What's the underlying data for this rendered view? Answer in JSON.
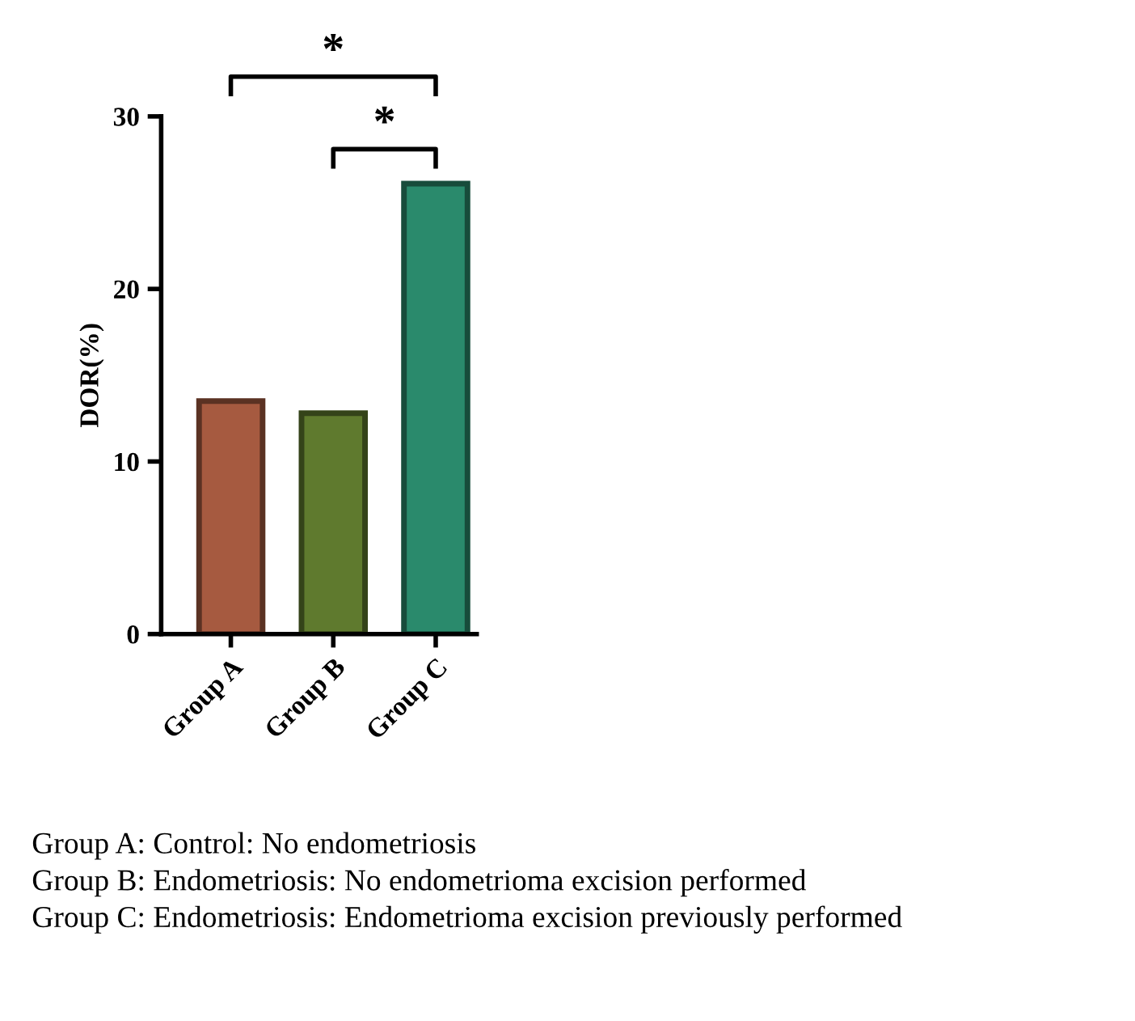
{
  "chart_data": {
    "type": "bar",
    "ylabel": "DOR(%)",
    "categories": [
      "Group A",
      "Group B",
      "Group C"
    ],
    "values": [
      13.5,
      12.8,
      26.1
    ],
    "colors": [
      "#a65a40",
      "#5f7a2e",
      "#2a8a6c"
    ],
    "ylim": [
      0,
      30
    ],
    "yticks": [
      0,
      10,
      20,
      30
    ],
    "grid": false,
    "legend": false,
    "annotations": [
      "*",
      "*",
      "Group A: Control: No endometriosis",
      "Group B: Endometriosis: No endometrioma excision performed",
      "Group C: Endometriosis: Endometrioma excision previously performed"
    ]
  }
}
